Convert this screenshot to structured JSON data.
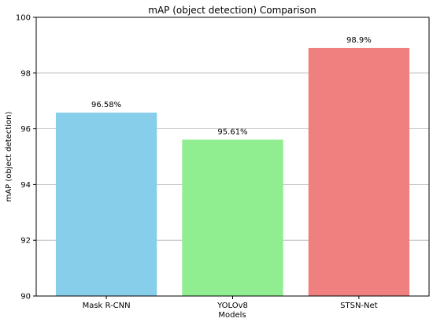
{
  "chart_data": {
    "type": "bar",
    "title": "mAP (object detection) Comparison",
    "xlabel": "Models",
    "ylabel": "mAP (object detection)",
    "categories": [
      "Mask R-CNN",
      "YOLOv8",
      "STSN-Net"
    ],
    "values": [
      96.58,
      95.61,
      98.9
    ],
    "data_labels": [
      "96.58%",
      "95.61%",
      "98.9%"
    ],
    "colors": [
      "#87ceeb",
      "#90ee90",
      "#f08080"
    ],
    "ylim": [
      90,
      100
    ],
    "yticks": [
      90,
      92,
      94,
      96,
      98,
      100
    ],
    "grid": "y-major"
  }
}
